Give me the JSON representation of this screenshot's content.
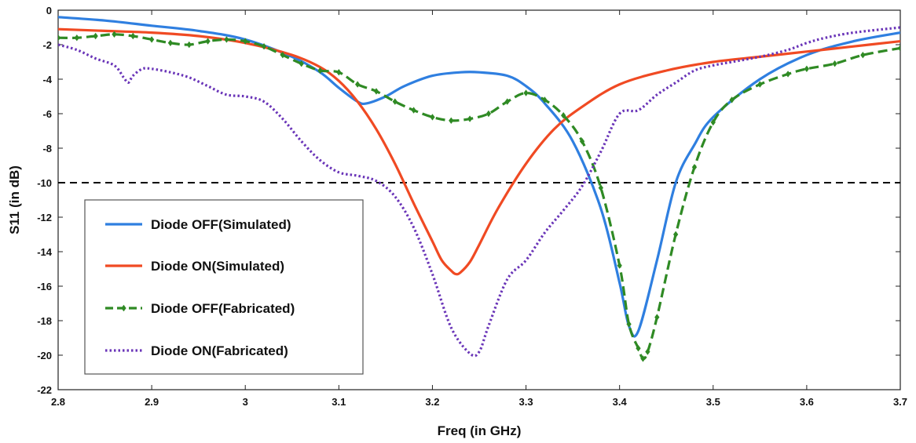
{
  "chart_data": {
    "type": "line",
    "xlabel": "Freq (in GHz)",
    "ylabel": "S11 (in dB)",
    "xlim": [
      2.8,
      3.7
    ],
    "ylim": [
      -22,
      0
    ],
    "xticks": [
      2.8,
      2.9,
      3.0,
      3.1,
      3.2,
      3.3,
      3.4,
      3.5,
      3.6,
      3.7
    ],
    "xtick_labels": [
      "2.8",
      "2.9",
      "3",
      "3.1",
      "3.2",
      "3.3",
      "3.4",
      "3.5",
      "3.6",
      "3.7"
    ],
    "yticks": [
      0,
      -2,
      -4,
      -6,
      -8,
      -10,
      -12,
      -14,
      -16,
      -18,
      -20,
      -22
    ],
    "ytick_labels": [
      "0",
      "-2",
      "-4",
      "-6",
      "-8",
      "-10",
      "-12",
      "-14",
      "-16",
      "-18",
      "-20",
      "-22"
    ],
    "grid": false,
    "legend_position": "bottom-left",
    "reference_line": {
      "y": -10,
      "style": "dashed",
      "color": "#000000"
    },
    "series": [
      {
        "name": "Diode OFF(Simulated)",
        "color": "#2f7fe0",
        "style": "solid",
        "x": [
          2.8,
          2.85,
          2.9,
          2.95,
          3.0,
          3.05,
          3.08,
          3.1,
          3.12,
          3.13,
          3.15,
          3.17,
          3.2,
          3.23,
          3.25,
          3.28,
          3.3,
          3.32,
          3.35,
          3.38,
          3.4,
          3.41,
          3.42,
          3.44,
          3.46,
          3.48,
          3.5,
          3.55,
          3.6,
          3.65,
          3.7
        ],
        "y": [
          -0.4,
          -0.6,
          -0.9,
          -1.2,
          -1.7,
          -2.7,
          -3.6,
          -4.5,
          -5.3,
          -5.4,
          -5.0,
          -4.4,
          -3.8,
          -3.6,
          -3.6,
          -3.8,
          -4.4,
          -5.4,
          -7.6,
          -11.5,
          -15.8,
          -18.3,
          -18.6,
          -14.5,
          -10.0,
          -7.8,
          -6.2,
          -4.0,
          -2.6,
          -1.8,
          -1.3
        ]
      },
      {
        "name": "Diode ON(Simulated)",
        "color": "#f04a23",
        "style": "solid",
        "x": [
          2.8,
          2.85,
          2.9,
          2.95,
          3.0,
          3.05,
          3.08,
          3.1,
          3.12,
          3.14,
          3.16,
          3.18,
          3.2,
          3.21,
          3.22,
          3.225,
          3.23,
          3.24,
          3.25,
          3.27,
          3.3,
          3.33,
          3.36,
          3.4,
          3.45,
          3.5,
          3.55,
          3.6,
          3.65,
          3.7
        ],
        "y": [
          -1.1,
          -1.2,
          -1.3,
          -1.5,
          -1.9,
          -2.6,
          -3.3,
          -4.1,
          -5.3,
          -6.9,
          -8.9,
          -11.2,
          -13.4,
          -14.5,
          -15.1,
          -15.3,
          -15.2,
          -14.6,
          -13.6,
          -11.5,
          -8.9,
          -6.9,
          -5.6,
          -4.3,
          -3.5,
          -3.0,
          -2.7,
          -2.4,
          -2.1,
          -1.8
        ]
      },
      {
        "name": "Diode OFF(Fabricated)",
        "color": "#2f8a24",
        "style": "dashed-diamond",
        "x": [
          2.8,
          2.82,
          2.84,
          2.86,
          2.88,
          2.9,
          2.92,
          2.94,
          2.96,
          2.98,
          3.0,
          3.02,
          3.04,
          3.06,
          3.08,
          3.1,
          3.12,
          3.14,
          3.16,
          3.18,
          3.2,
          3.22,
          3.24,
          3.26,
          3.28,
          3.3,
          3.32,
          3.34,
          3.36,
          3.38,
          3.4,
          3.41,
          3.42,
          3.425,
          3.43,
          3.44,
          3.46,
          3.48,
          3.5,
          3.52,
          3.55,
          3.58,
          3.6,
          3.63,
          3.66,
          3.7
        ],
        "y": [
          -1.6,
          -1.6,
          -1.5,
          -1.4,
          -1.5,
          -1.7,
          -1.9,
          -2.0,
          -1.8,
          -1.7,
          -1.8,
          -2.1,
          -2.6,
          -3.1,
          -3.5,
          -3.6,
          -4.3,
          -4.7,
          -5.3,
          -5.8,
          -6.2,
          -6.4,
          -6.3,
          -6.0,
          -5.3,
          -4.8,
          -5.2,
          -6.1,
          -7.6,
          -10.3,
          -14.8,
          -18.2,
          -19.6,
          -20.2,
          -19.8,
          -17.8,
          -13.0,
          -9.1,
          -6.5,
          -5.2,
          -4.3,
          -3.7,
          -3.4,
          -3.1,
          -2.6,
          -2.2
        ]
      },
      {
        "name": "Diode ON(Fabricated)",
        "color": "#6a35b8",
        "style": "dotted",
        "x": [
          2.8,
          2.82,
          2.84,
          2.86,
          2.87,
          2.875,
          2.88,
          2.89,
          2.9,
          2.92,
          2.94,
          2.96,
          2.98,
          3.0,
          3.02,
          3.04,
          3.06,
          3.08,
          3.1,
          3.12,
          3.14,
          3.16,
          3.18,
          3.2,
          3.22,
          3.24,
          3.25,
          3.26,
          3.28,
          3.3,
          3.32,
          3.34,
          3.36,
          3.38,
          3.4,
          3.42,
          3.44,
          3.46,
          3.48,
          3.5,
          3.52,
          3.55,
          3.58,
          3.6,
          3.62,
          3.65,
          3.7
        ],
        "y": [
          -2.0,
          -2.3,
          -2.8,
          -3.2,
          -3.9,
          -4.2,
          -3.8,
          -3.4,
          -3.4,
          -3.6,
          -3.9,
          -4.4,
          -4.9,
          -5.0,
          -5.3,
          -6.3,
          -7.6,
          -8.7,
          -9.4,
          -9.6,
          -9.9,
          -10.8,
          -12.6,
          -15.3,
          -18.4,
          -19.9,
          -19.8,
          -18.3,
          -15.6,
          -14.5,
          -12.9,
          -11.6,
          -10.2,
          -8.2,
          -6.0,
          -5.8,
          -4.9,
          -4.2,
          -3.5,
          -3.2,
          -3.0,
          -2.7,
          -2.3,
          -1.9,
          -1.6,
          -1.3,
          -1.0
        ]
      }
    ]
  }
}
